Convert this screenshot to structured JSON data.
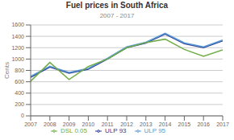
{
  "chart_data": {
    "type": "line",
    "title": "Fuel prices in South Africa",
    "subtitle": "2007 - 2017",
    "ylabel": "Cents",
    "x": [
      2007,
      2008,
      2009,
      2010,
      2011,
      2012,
      2013,
      2014,
      2015,
      2016,
      2017
    ],
    "series": [
      {
        "name": "ULP 93",
        "color": "#2e4099",
        "values": [
          680,
          860,
          750,
          820,
          1000,
          1200,
          1280,
          1440,
          1270,
          1200,
          1320
        ]
      },
      {
        "name": "ULP 95",
        "color": "#5b9bd5",
        "values": [
          695,
          875,
          765,
          835,
          1015,
          1215,
          1295,
          1455,
          1285,
          1215,
          1335
        ]
      },
      {
        "name": "DSL 0.05",
        "color": "#70ad47",
        "values": [
          610,
          940,
          640,
          870,
          1000,
          1200,
          1290,
          1350,
          1170,
          1050,
          1160
        ]
      }
    ],
    "xlim": [
      2007,
      2017
    ],
    "xticks": [
      2007,
      2008,
      2009,
      2010,
      2011,
      2012,
      2013,
      2014,
      2015,
      2016,
      2017
    ],
    "ylim": [
      0,
      1600
    ],
    "yticks": [
      0,
      200,
      400,
      600,
      800,
      1000,
      1200,
      1400,
      1600
    ],
    "grid": true,
    "legend": "bottom"
  }
}
